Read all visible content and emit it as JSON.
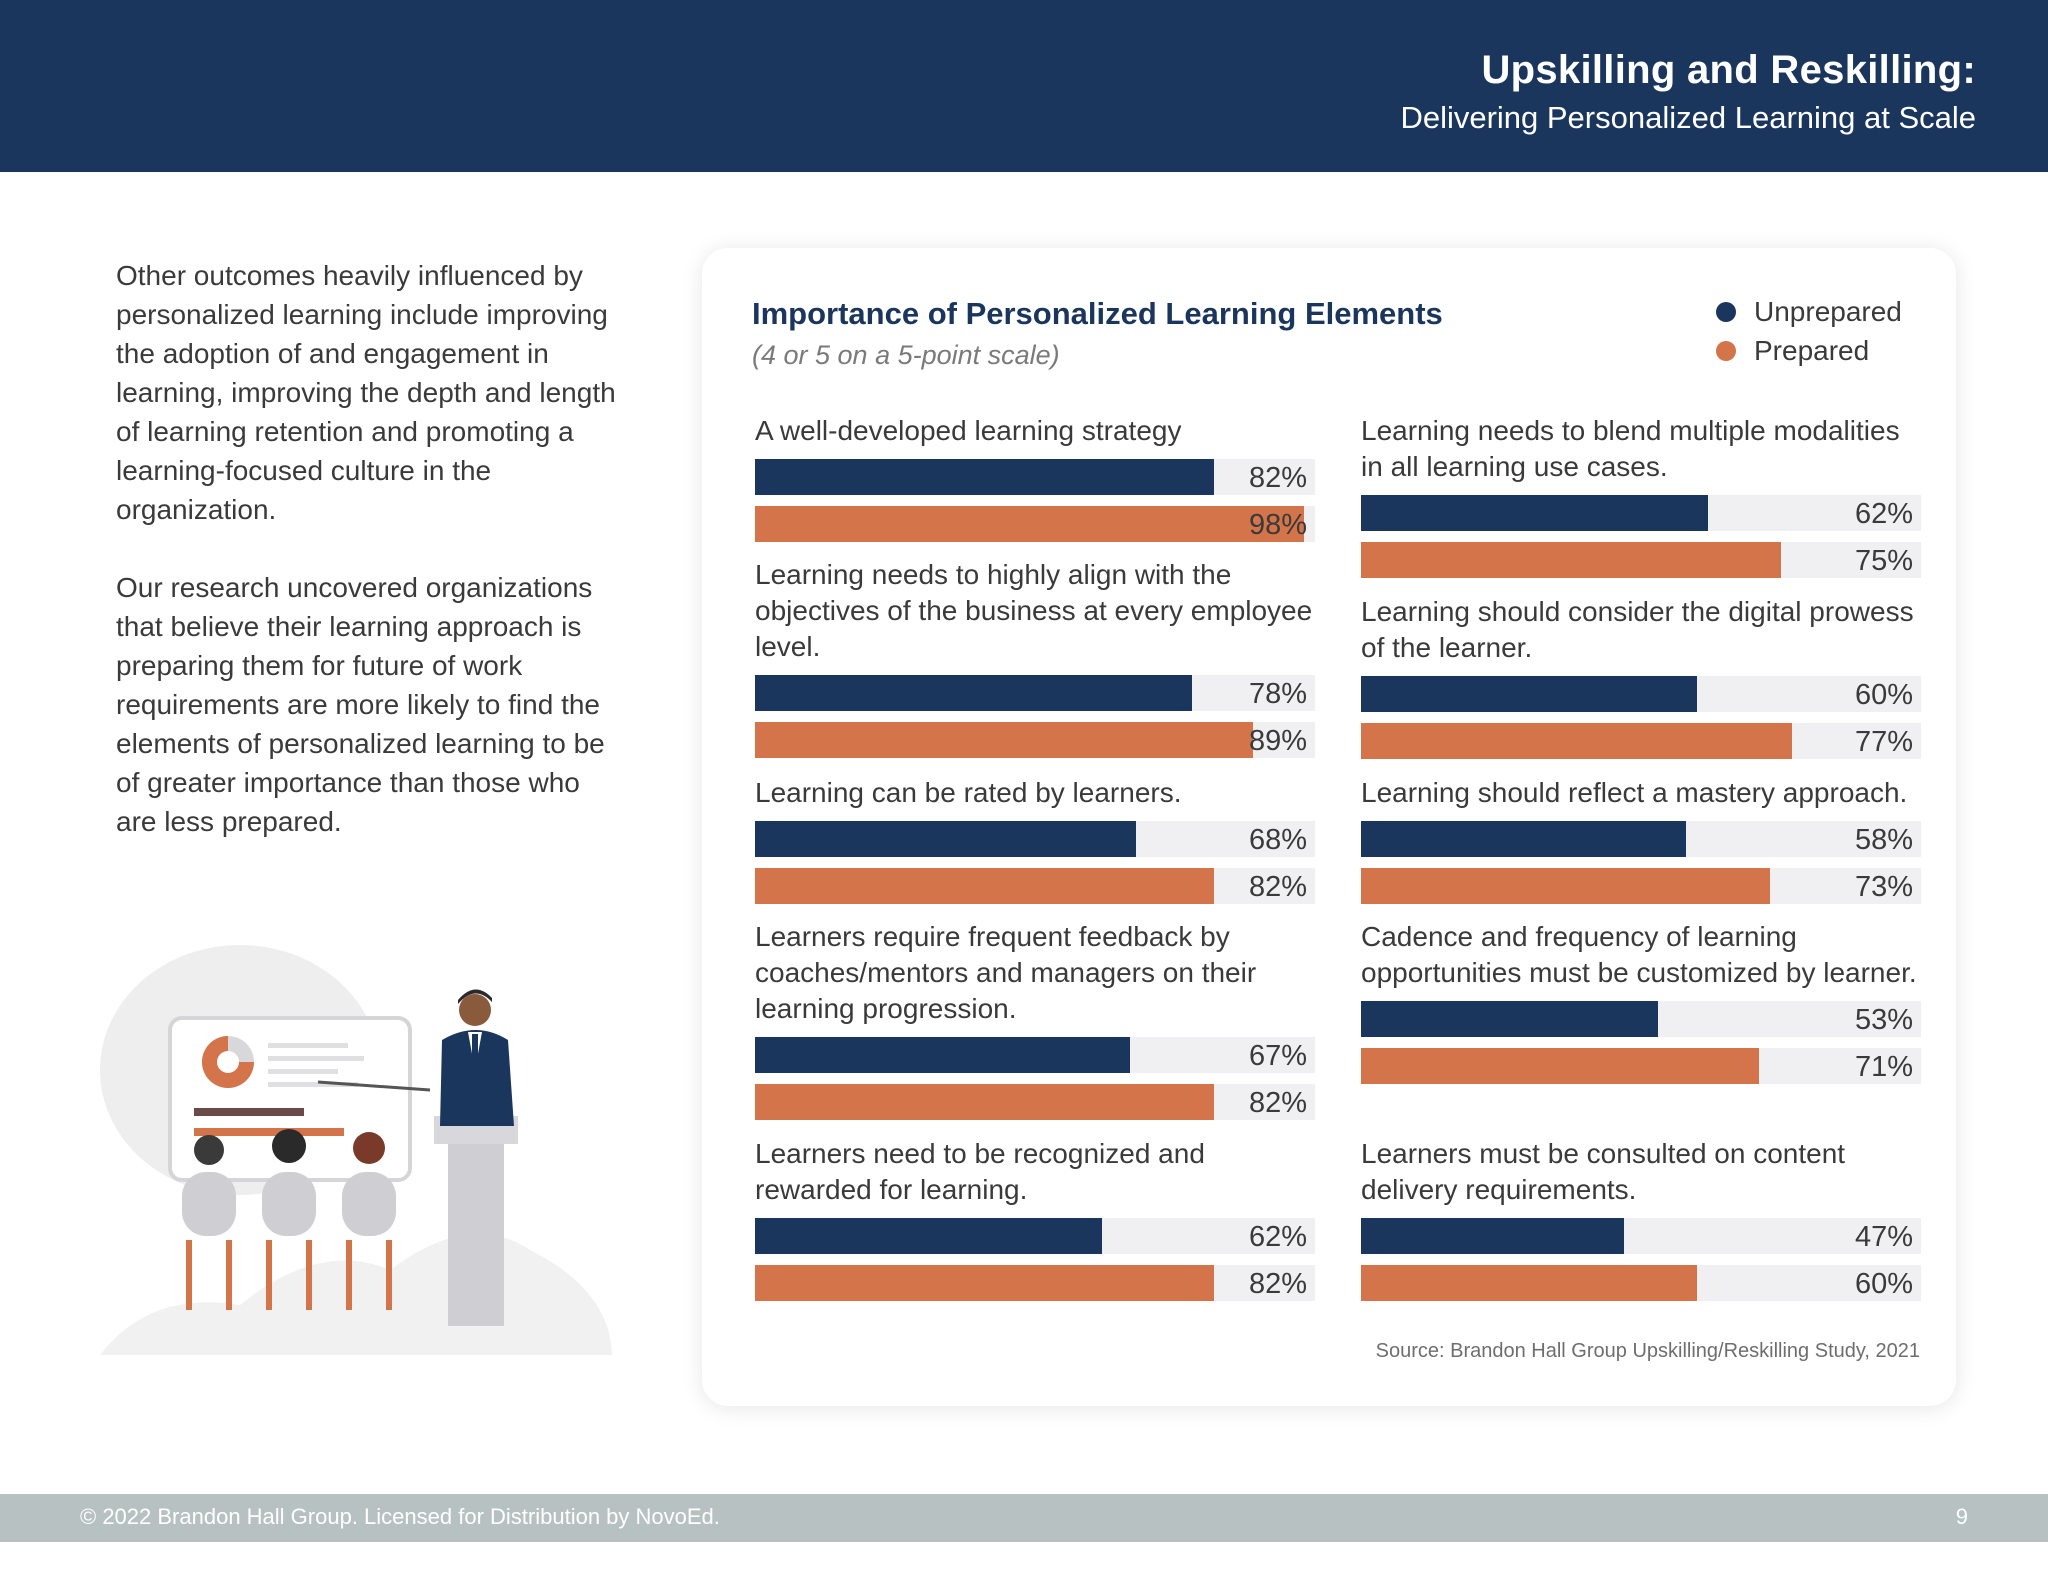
{
  "header": {
    "title": "Upskilling and Reskilling:",
    "subtitle": "Delivering Personalized Learning at Scale"
  },
  "intro": {
    "para1": "Other outcomes heavily influenced by personalized learning include improving the adoption of and engagement in learning, improving the depth and length of learning retention and promoting a learning-focused culture in the organization.",
    "para2": "Our research uncovered organizations that believe their learning approach is preparing them for future of work requirements are more likely to find the elements of personalized learning to be of greater importance than those who are less prepared."
  },
  "colors": {
    "navy": "#1b365d",
    "orange": "#d4744a",
    "track": "#f0f0f3"
  },
  "chart_data": {
    "type": "bar",
    "title": "Importance of Personalized Learning Elements",
    "subtitle": "(4 or 5 on a 5-point scale)",
    "legend": [
      "Unprepared",
      "Prepared"
    ],
    "legend_position": "top-right",
    "categories": [
      "A well-developed learning strategy",
      "Learning needs to highly align with the objectives of the business at every employee level.",
      "Learning can be rated by learners.",
      "Learners require frequent feedback by coaches/mentors and managers on their learning progression.",
      "Learners need to be recognized and rewarded for learning.",
      "Learning needs to blend multiple modalities in all learning use cases.",
      "Learning should consider the digital prowess of the learner.",
      "Learning should reflect a mastery approach.",
      "Cadence and frequency of learning opportunities must be customized by learner.",
      "Learners must be consulted on content delivery requirements."
    ],
    "series": [
      {
        "name": "Unprepared",
        "values": [
          82,
          78,
          68,
          67,
          62,
          62,
          60,
          58,
          53,
          47
        ]
      },
      {
        "name": "Prepared",
        "values": [
          98,
          89,
          82,
          82,
          82,
          75,
          77,
          73,
          71,
          60
        ]
      }
    ],
    "value_labels": {
      "unprepared": [
        "82%",
        "78%",
        "68%",
        "67%",
        "62%",
        "62%",
        "60%",
        "58%",
        "53%",
        "47%"
      ],
      "prepared": [
        "98%",
        "89%",
        "82%",
        "82%",
        "82%",
        "75%",
        "77%",
        "73%",
        "71%",
        "60%"
      ]
    },
    "xlim": [
      0,
      100
    ],
    "grid": false
  },
  "source": "Source: Brandon Hall Group Upskilling/Reskilling Study, 2021",
  "footer": {
    "copyright": "© 2022 Brandon Hall Group. Licensed for Distribution by NovoEd.",
    "page": "9"
  }
}
